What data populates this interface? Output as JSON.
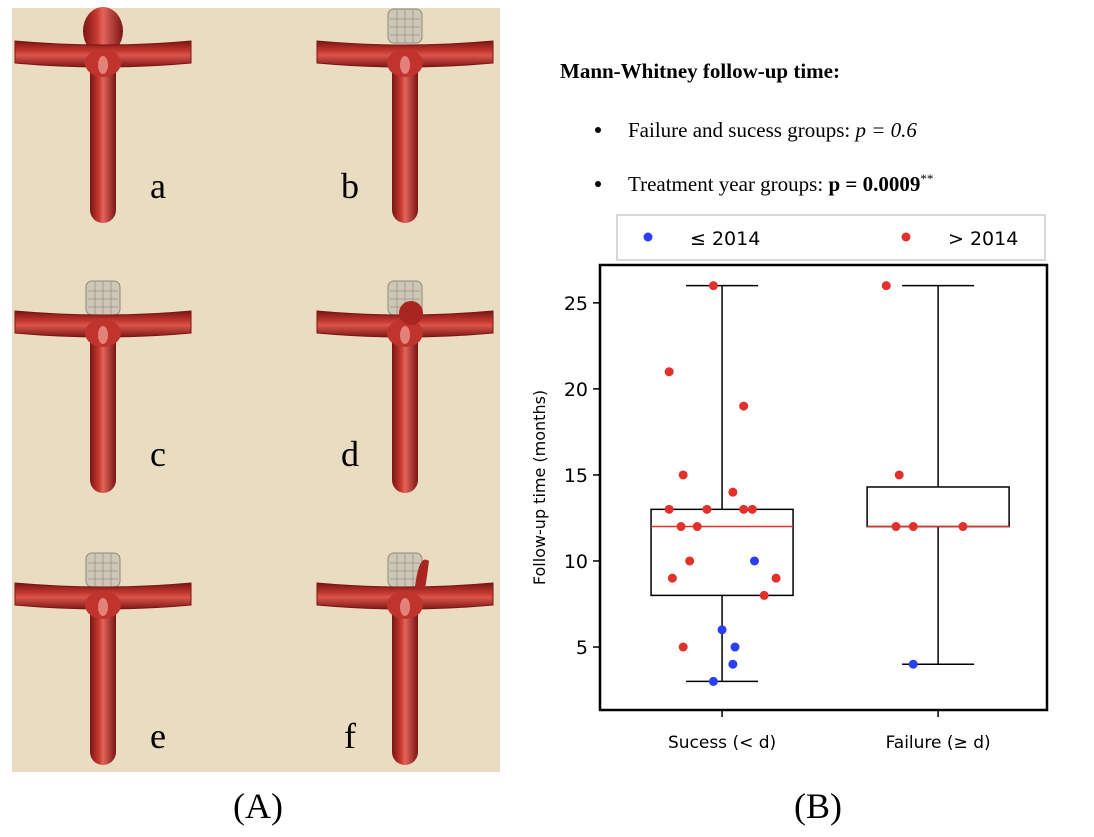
{
  "figure": {
    "panel_a_label": "(A)",
    "panel_b_label": "(B)",
    "renderings": [
      "a",
      "b",
      "c",
      "d",
      "e",
      "f"
    ]
  },
  "stats": {
    "title": "Mann-Whitney follow-up time:",
    "bullets": [
      {
        "text": "Failure and sucess groups:",
        "math": "p = 0.6"
      },
      {
        "text": "Treatment year groups:",
        "math": "p = 0.0009",
        "sup": "**"
      }
    ]
  },
  "chart_data": {
    "type": "box",
    "ylabel": "Follow-up time (months)",
    "categories": [
      "Sucess (< d)",
      "Failure (≥ d)"
    ],
    "boxes": [
      {
        "low": 3,
        "q1": 8,
        "median": 12,
        "q3": 13,
        "high": 26
      },
      {
        "low": 4,
        "q1": 12,
        "median": 12,
        "q3": 14.3,
        "high": 26
      }
    ],
    "series": [
      {
        "name": "≤ 2014",
        "color": "#2a3ff2",
        "x": [
          0.15,
          0,
          0.06,
          0.05,
          -0.04,
          0.885
        ],
        "values": [
          10,
          6,
          5,
          4,
          3,
          4
        ]
      },
      {
        "name": "> 2014",
        "color": "#e3302b",
        "x": [
          -0.04,
          -0.245,
          -0.18,
          0.1,
          -0.245,
          -0.07,
          0.1,
          0.14,
          0.05,
          -0.19,
          -0.115,
          -0.15,
          -0.23,
          0.25,
          0.195,
          -0.18,
          0.76,
          0.82,
          0.805,
          0.885,
          1.115
        ],
        "values": [
          26,
          21,
          15,
          19,
          13,
          13,
          13,
          13,
          14,
          12,
          12,
          10,
          9,
          9,
          8,
          5,
          26,
          15,
          12,
          12,
          12
        ]
      }
    ],
    "xlim": [
      -0.565,
      1.504
    ],
    "ylim": [
      1.34,
      27.2
    ],
    "yticks": [
      5,
      10,
      15,
      20,
      25
    ],
    "legend": "top",
    "median_color": "#e3302b"
  }
}
